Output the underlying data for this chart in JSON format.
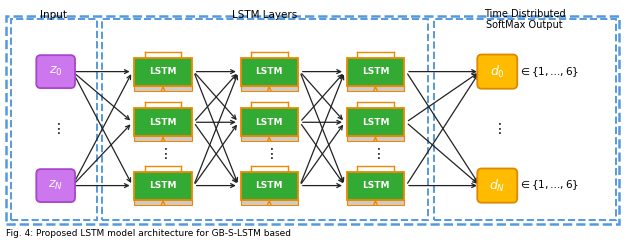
{
  "bg_color": "#ffffff",
  "dashed_border_color": "#5599dd",
  "input_box_color": "#cc77ee",
  "input_box_edge": "#aa44cc",
  "lstm_box_color": "#33aa33",
  "lstm_box_edge": "#ee8800",
  "lstm_recurrent_color": "#ee8800",
  "output_box_color": "#ffbb00",
  "output_box_edge": "#dd8800",
  "arrow_color": "#222222",
  "section_label_input": "Input",
  "section_label_lstm": "LSTM Layers",
  "section_label_output": "Time Distributed\nSoftMax Output",
  "input_labels": [
    "$z_0$",
    "$z_N$"
  ],
  "output_labels": [
    "$d_0$",
    "$d_N$"
  ],
  "output_set_text": "$\\in\\{1,\\ldots,6\\}$",
  "caption": "Fig. 4: Proposed LSTM model architecture for GB-S-LSTM based"
}
